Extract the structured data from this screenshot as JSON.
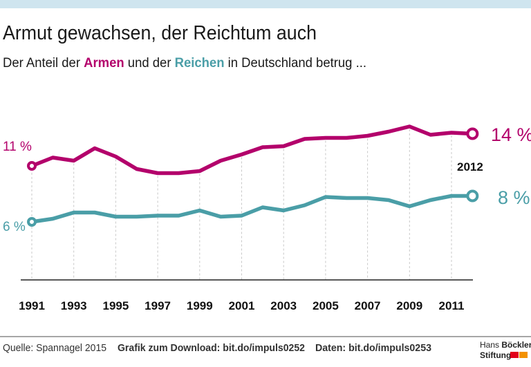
{
  "header": {
    "title": "Armut gewachsen, der Reichtum auch",
    "subtitle_parts": [
      "Der Anteil der ",
      "Armen",
      " und der ",
      "Reichen",
      " in Deutschland betrug ..."
    ]
  },
  "colors": {
    "top_bar": "#cfe5ef",
    "armen": "#b3006b",
    "reichen": "#4a9ea7",
    "grid": "#c8c8c8",
    "axis": "#222222"
  },
  "chart_data": {
    "type": "line",
    "title": "Armut gewachsen, der Reichtum auch",
    "x": [
      1991,
      1992,
      1993,
      1994,
      1995,
      1996,
      1997,
      1998,
      1999,
      2000,
      2001,
      2002,
      2003,
      2004,
      2005,
      2006,
      2007,
      2008,
      2009,
      2010,
      2011,
      2012
    ],
    "xticks": [
      "1991",
      "1993",
      "1995",
      "1997",
      "1999",
      "2001",
      "2003",
      "2005",
      "2007",
      "2009",
      "2011"
    ],
    "ylim": [
      0,
      17
    ],
    "grid": "vertical dashed at tick years",
    "series": [
      {
        "name": "Armen",
        "color": "#b3006b",
        "values": [
          11.0,
          11.8,
          11.5,
          12.7,
          11.9,
          10.7,
          10.3,
          10.3,
          10.5,
          11.5,
          12.1,
          12.8,
          12.9,
          13.6,
          13.7,
          13.7,
          13.9,
          14.3,
          14.8,
          14.0,
          14.2,
          14.1
        ],
        "start_label": "11 %",
        "end_label": "14 %"
      },
      {
        "name": "Reichen",
        "color": "#4a9ea7",
        "values": [
          5.6,
          5.9,
          6.5,
          6.5,
          6.1,
          6.1,
          6.2,
          6.2,
          6.7,
          6.1,
          6.2,
          7.0,
          6.7,
          7.2,
          8.0,
          7.9,
          7.9,
          7.7,
          7.1,
          7.7,
          8.1,
          8.1
        ],
        "start_label": "6 %",
        "end_label": "8 %"
      }
    ],
    "end_year_label": "2012"
  },
  "footer": {
    "source": "Quelle: Spannagel 2015",
    "download": "Grafik zum Download: bit.do/impuls0252",
    "data": "Daten: bit.do/impuls0253",
    "logo_line1_a": "Hans",
    "logo_line1_b": "Böckler",
    "logo_line2": "Stiftung"
  }
}
